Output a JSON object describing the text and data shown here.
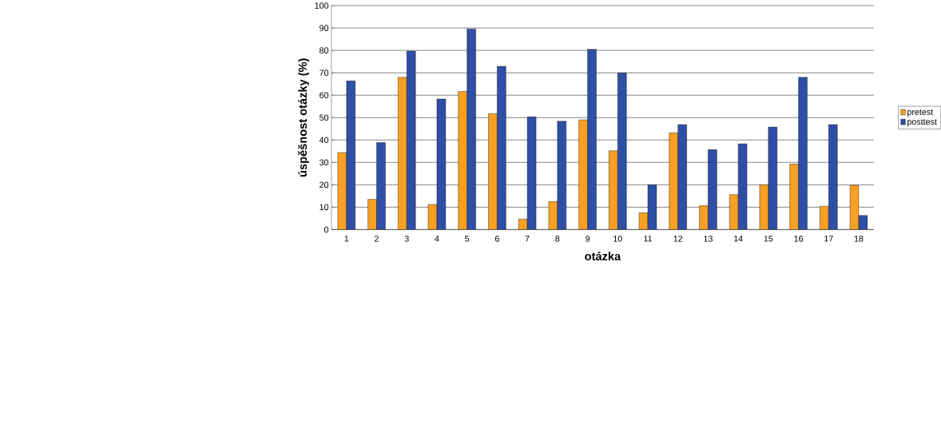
{
  "chart_data": {
    "type": "bar",
    "xlabel": "otázka",
    "ylabel": "úspěšnost otázky (%)",
    "categories": [
      "1",
      "2",
      "3",
      "4",
      "5",
      "6",
      "7",
      "8",
      "9",
      "10",
      "11",
      "12",
      "13",
      "14",
      "15",
      "16",
      "17",
      "18"
    ],
    "series": [
      {
        "name": "pretest",
        "color": "#f7a023",
        "values": [
          34.4,
          13.5,
          68,
          11.2,
          61.7,
          51.8,
          4.7,
          12.5,
          49,
          35.2,
          7.5,
          43.2,
          10.7,
          15.6,
          20,
          29.2,
          10.4,
          19.8
        ]
      },
      {
        "name": "posttest",
        "color": "#2f4fa6",
        "values": [
          66.4,
          38.8,
          79.7,
          58.3,
          89.6,
          72.9,
          50.3,
          48.4,
          80.5,
          70,
          20,
          46.9,
          35.7,
          38.3,
          45.8,
          68,
          46.9,
          6.3
        ]
      }
    ],
    "ylim": [
      0,
      100
    ],
    "yticks": [
      0,
      10,
      20,
      30,
      40,
      50,
      60,
      70,
      80,
      90,
      100
    ],
    "grid": "y",
    "legend": "right"
  }
}
